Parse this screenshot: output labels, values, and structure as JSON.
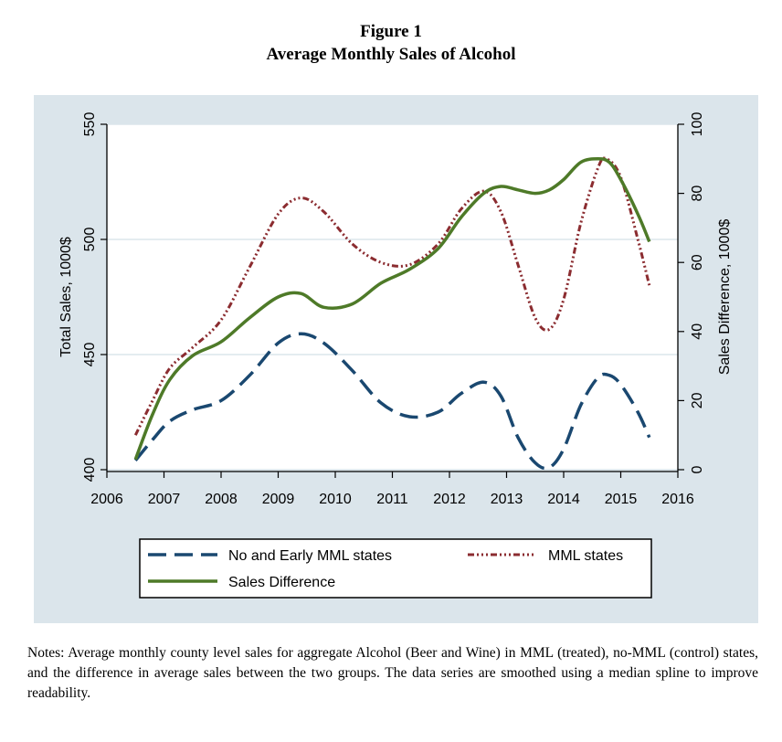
{
  "figure": {
    "number": "Figure 1",
    "title": "Average Monthly Sales of Alcohol"
  },
  "notes": "Notes: Average monthly county level sales for aggregate Alcohol (Beer and Wine) in MML (treated), no-MML (control) states, and the difference in average sales between the two groups. The data series are smoothed using a median spline to improve readability.",
  "colors": {
    "plot_background": "#dbe5eb",
    "plot_area": "#ffffff",
    "gridline": "#dbe5eb",
    "no_and_early_mml": "#1a4870",
    "mml_states": "#8b2c30",
    "sales_difference": "#4e7a28"
  },
  "chart_data": {
    "type": "line",
    "title": "Average Monthly Sales of Alcohol",
    "xlabel": "",
    "ylabel": "Total Sales, 1000$",
    "y2label": "Sales Difference, 1000$",
    "xlim": [
      2006,
      2016
    ],
    "ylim": [
      400,
      550
    ],
    "y2lim": [
      0,
      100
    ],
    "x_ticks": [
      "2006",
      "2007",
      "2008",
      "2009",
      "2010",
      "2011",
      "2012",
      "2013",
      "2014",
      "2015",
      "2016"
    ],
    "y_ticks": [
      "400",
      "450",
      "500",
      "550"
    ],
    "y2_ticks": [
      "0",
      "20",
      "40",
      "60",
      "80",
      "100"
    ],
    "grid": true,
    "legend_position": "bottom",
    "series": [
      {
        "name": "No and Early MML states",
        "axis": "left",
        "style": "dash",
        "x": [
          2006.5,
          2006.8,
          2007.1,
          2007.5,
          2008.0,
          2008.5,
          2009.0,
          2009.4,
          2009.8,
          2010.3,
          2010.8,
          2011.3,
          2011.8,
          2012.2,
          2012.6,
          2012.9,
          2013.2,
          2013.5,
          2013.75,
          2014.0,
          2014.3,
          2014.6,
          2014.8,
          2015.0,
          2015.3,
          2015.5
        ],
        "y": [
          404,
          413,
          421,
          426,
          430,
          441,
          455,
          459,
          455,
          443,
          429,
          423,
          425,
          433,
          438,
          432,
          414,
          403,
          401,
          409,
          428,
          440,
          441,
          437,
          425,
          414
        ]
      },
      {
        "name": "MML states",
        "axis": "left",
        "style": "dash-dot",
        "x": [
          2006.5,
          2006.8,
          2007.1,
          2007.5,
          2008.0,
          2008.5,
          2009.0,
          2009.4,
          2009.8,
          2010.3,
          2010.8,
          2011.3,
          2011.8,
          2012.2,
          2012.6,
          2012.9,
          2013.2,
          2013.5,
          2013.75,
          2014.0,
          2014.3,
          2014.6,
          2014.75,
          2015.0,
          2015.3,
          2015.5
        ],
        "y": [
          415,
          430,
          444,
          453,
          465,
          488,
          511,
          518,
          512,
          498,
          490,
          489,
          498,
          513,
          521,
          512,
          489,
          466,
          461,
          474,
          507,
          531,
          535,
          527,
          500,
          480
        ]
      },
      {
        "name": "Sales Difference",
        "axis": "right",
        "style": "solid",
        "x": [
          2006.5,
          2006.8,
          2007.1,
          2007.5,
          2008.0,
          2008.5,
          2009.0,
          2009.4,
          2009.8,
          2010.3,
          2010.8,
          2011.3,
          2011.8,
          2012.2,
          2012.6,
          2012.9,
          2013.2,
          2013.5,
          2013.75,
          2014.0,
          2014.3,
          2014.6,
          2014.8,
          2015.0,
          2015.3,
          2015.5
        ],
        "y": [
          3,
          16,
          26,
          33,
          37,
          44,
          50,
          51,
          47,
          48,
          54,
          58,
          64,
          73,
          80,
          82,
          81,
          80,
          81,
          84,
          89,
          90,
          89,
          84,
          74,
          66
        ]
      }
    ]
  }
}
